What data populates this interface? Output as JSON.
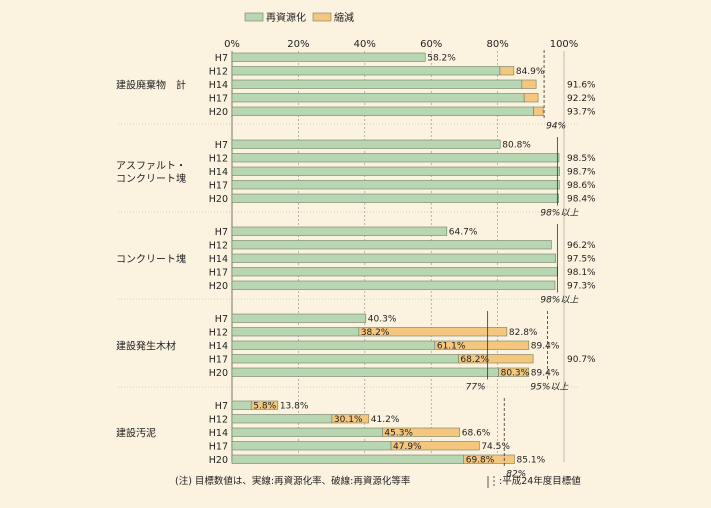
{
  "legend": {
    "recycle": "再資源化",
    "reduction": "縮減"
  },
  "colors": {
    "background": "#fbf3e0",
    "recycle": "#b8d6b1",
    "reduction": "#f5c77e",
    "bar_border": "#6e7f66",
    "grid": "#888888"
  },
  "footnote": "(注) 目標数値は、実線:再資源化率、破線:再資源化等率",
  "footnote_legend": ":平成24年度目標値",
  "chart_data": {
    "type": "bar",
    "orientation": "horizontal",
    "stacked": true,
    "xlim": [
      0,
      100
    ],
    "x_ticks": [
      "0%",
      "20%",
      "40%",
      "60%",
      "80%",
      "100%"
    ],
    "grid": "vertical dashed",
    "legend_position": "top",
    "series": [
      {
        "name": "再資源化"
      },
      {
        "name": "縮減"
      }
    ],
    "groups": [
      {
        "category": "建設廃棄物　計",
        "years": [
          "H7",
          "H12",
          "H14",
          "H17",
          "H20"
        ],
        "recycle": [
          58.2,
          80.7,
          87.3,
          88.0,
          90.8
        ],
        "reduction": [
          0,
          4.2,
          4.3,
          4.2,
          2.9
        ],
        "total_labels": [
          "",
          "84.9%",
          "91.6%",
          "92.2%",
          "93.7%"
        ],
        "recycle_labels": [
          "58.2%",
          "",
          "",
          "",
          ""
        ],
        "targets": [
          {
            "value": 94,
            "style": "dashed",
            "label": "94%"
          }
        ]
      },
      {
        "category": "アスファルト・\nコンクリート塊",
        "years": [
          "H7",
          "H12",
          "H14",
          "H17",
          "H20"
        ],
        "recycle": [
          80.8,
          98.5,
          98.7,
          98.6,
          98.4
        ],
        "reduction": [
          0,
          0,
          0,
          0,
          0
        ],
        "total_labels": [
          "",
          "98.5%",
          "98.7%",
          "98.6%",
          "98.4%"
        ],
        "recycle_labels": [
          "80.8%",
          "",
          "",
          "",
          ""
        ],
        "targets": [
          {
            "value": 98,
            "style": "solid",
            "label": "98%以上"
          }
        ]
      },
      {
        "category": "コンクリート塊",
        "years": [
          "H7",
          "H12",
          "H14",
          "H17",
          "H20"
        ],
        "recycle": [
          64.7,
          96.2,
          97.5,
          98.1,
          97.3
        ],
        "reduction": [
          0,
          0,
          0,
          0,
          0
        ],
        "total_labels": [
          "",
          "96.2%",
          "97.5%",
          "98.1%",
          "97.3%"
        ],
        "recycle_labels": [
          "64.7%",
          "",
          "",
          "",
          ""
        ],
        "targets": [
          {
            "value": 98,
            "style": "solid",
            "label": "98%以上"
          }
        ]
      },
      {
        "category": "建設発生木材",
        "years": [
          "H7",
          "H12",
          "H14",
          "H17",
          "H20"
        ],
        "recycle": [
          40.3,
          38.2,
          61.1,
          68.2,
          80.3
        ],
        "reduction": [
          0,
          44.6,
          28.3,
          22.5,
          9.1
        ],
        "total_labels": [
          "",
          "82.8%",
          "89.4%",
          "90.7%",
          "89.4%"
        ],
        "recycle_labels": [
          "40.3%",
          "38.2%",
          "61.1%",
          "68.2%",
          "80.3%"
        ],
        "targets": [
          {
            "value": 77,
            "style": "solid",
            "label": "77%"
          },
          {
            "value": 95,
            "style": "dashed",
            "label": "95%以上"
          }
        ]
      },
      {
        "category": "建設汚泥",
        "years": [
          "H7",
          "H12",
          "H14",
          "H17",
          "H20"
        ],
        "recycle": [
          5.8,
          30.1,
          45.3,
          47.9,
          69.8
        ],
        "reduction": [
          8.0,
          11.1,
          23.3,
          26.6,
          15.3
        ],
        "total_labels": [
          "13.8%",
          "41.2%",
          "68.6%",
          "74.5%",
          "85.1%"
        ],
        "recycle_labels": [
          "5.8%",
          "30.1%",
          "45.3%",
          "47.9%",
          "69.8%"
        ],
        "targets": [
          {
            "value": 82,
            "style": "dashed",
            "label": "82%"
          }
        ]
      }
    ]
  }
}
